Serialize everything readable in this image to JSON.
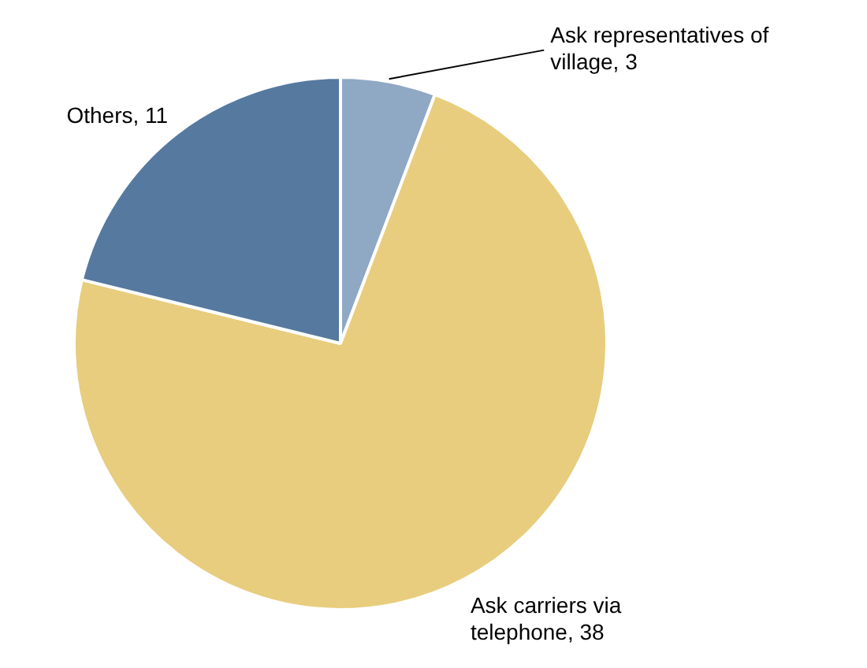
{
  "chart_data": {
    "type": "pie",
    "categories": [
      "Ask representatives of village",
      "Ask carriers via telephone",
      "Others"
    ],
    "values": [
      3,
      38,
      11
    ],
    "value_labels": [
      ", 3",
      ", 38",
      ", 11"
    ],
    "colors": [
      "#8fa8c4",
      "#e8cd7e",
      "#56799f"
    ],
    "legend": false
  }
}
